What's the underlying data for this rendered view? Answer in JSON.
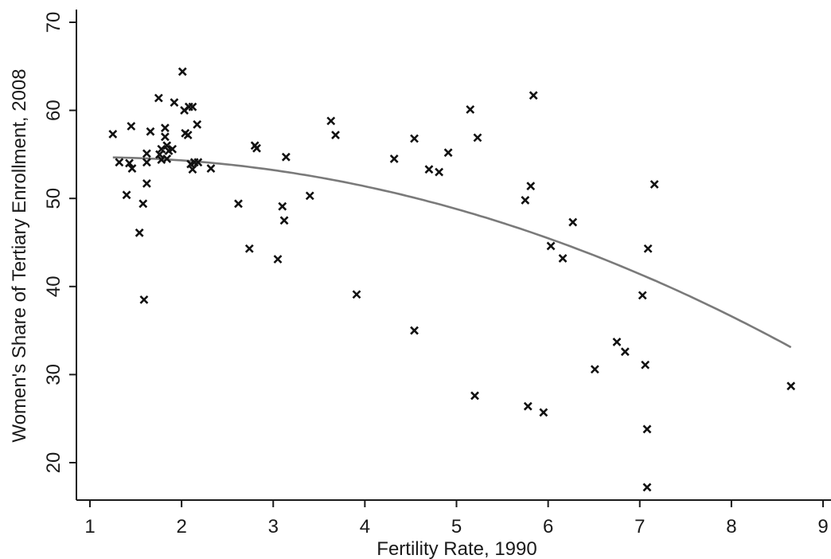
{
  "chart_data": {
    "type": "scatter",
    "title": "",
    "xlabel": "Fertility Rate, 1990",
    "ylabel": "Women's Share of Tertiary Enrollment, 2008",
    "xlim": [
      1,
      9
    ],
    "ylim": [
      16,
      71
    ],
    "xticks": [
      "1",
      "2",
      "3",
      "4",
      "5",
      "6",
      "7",
      "8",
      "9"
    ],
    "yticks": [
      "20",
      "30",
      "40",
      "50",
      "60",
      "70"
    ],
    "grid": false,
    "legend": "none",
    "marker": "x",
    "colors": {
      "points": "#111111",
      "fit_line": "#7a7a7a",
      "axes": "#1a1a1a"
    },
    "series": [
      {
        "points": [
          [
            1.25,
            57.3
          ],
          [
            1.32,
            54.1
          ],
          [
            1.4,
            50.4
          ],
          [
            1.43,
            54.0
          ],
          [
            1.45,
            58.2
          ],
          [
            1.46,
            53.4
          ],
          [
            1.54,
            46.1
          ],
          [
            1.58,
            49.4
          ],
          [
            1.59,
            38.5
          ],
          [
            1.62,
            51.7
          ],
          [
            1.62,
            55.1
          ],
          [
            1.62,
            54.1
          ],
          [
            1.66,
            57.6
          ],
          [
            1.75,
            61.4
          ],
          [
            1.76,
            55.0
          ],
          [
            1.78,
            54.4
          ],
          [
            1.78,
            55.6
          ],
          [
            1.82,
            58.0
          ],
          [
            1.82,
            57.0
          ],
          [
            1.84,
            56.0
          ],
          [
            1.84,
            54.5
          ],
          [
            1.86,
            55.4
          ],
          [
            1.9,
            55.6
          ],
          [
            1.92,
            60.9
          ],
          [
            2.01,
            64.4
          ],
          [
            2.03,
            60.0
          ],
          [
            2.04,
            57.4
          ],
          [
            2.07,
            57.2
          ],
          [
            2.08,
            60.4
          ],
          [
            2.1,
            53.9
          ],
          [
            2.12,
            60.4
          ],
          [
            2.12,
            53.3
          ],
          [
            2.14,
            54.1
          ],
          [
            2.17,
            58.4
          ],
          [
            2.18,
            54.1
          ],
          [
            2.32,
            53.4
          ],
          [
            2.62,
            49.4
          ],
          [
            2.74,
            44.3
          ],
          [
            2.8,
            56.0
          ],
          [
            2.82,
            55.7
          ],
          [
            3.05,
            43.1
          ],
          [
            3.1,
            49.1
          ],
          [
            3.12,
            47.5
          ],
          [
            3.14,
            54.7
          ],
          [
            3.4,
            50.3
          ],
          [
            3.63,
            58.8
          ],
          [
            3.68,
            57.2
          ],
          [
            3.91,
            39.1
          ],
          [
            4.32,
            54.5
          ],
          [
            4.54,
            56.8
          ],
          [
            4.54,
            35.0
          ],
          [
            4.7,
            53.3
          ],
          [
            4.81,
            53.0
          ],
          [
            4.91,
            55.2
          ],
          [
            5.15,
            60.1
          ],
          [
            5.2,
            27.6
          ],
          [
            5.23,
            56.9
          ],
          [
            5.75,
            49.8
          ],
          [
            5.78,
            26.4
          ],
          [
            5.81,
            51.4
          ],
          [
            5.84,
            61.7
          ],
          [
            5.95,
            25.7
          ],
          [
            6.03,
            44.6
          ],
          [
            6.16,
            43.2
          ],
          [
            6.27,
            47.3
          ],
          [
            6.51,
            30.6
          ],
          [
            6.75,
            33.7
          ],
          [
            6.84,
            32.6
          ],
          [
            7.03,
            39.0
          ],
          [
            7.06,
            31.1
          ],
          [
            7.08,
            23.8
          ],
          [
            7.08,
            17.2
          ],
          [
            7.09,
            44.3
          ],
          [
            7.16,
            51.6
          ],
          [
            8.65,
            28.7
          ]
        ]
      }
    ],
    "fit": {
      "type": "quadratic",
      "x_range": [
        1.25,
        8.65
      ],
      "coefficients": [
        54.3,
        0.75,
        -0.37
      ]
    }
  }
}
